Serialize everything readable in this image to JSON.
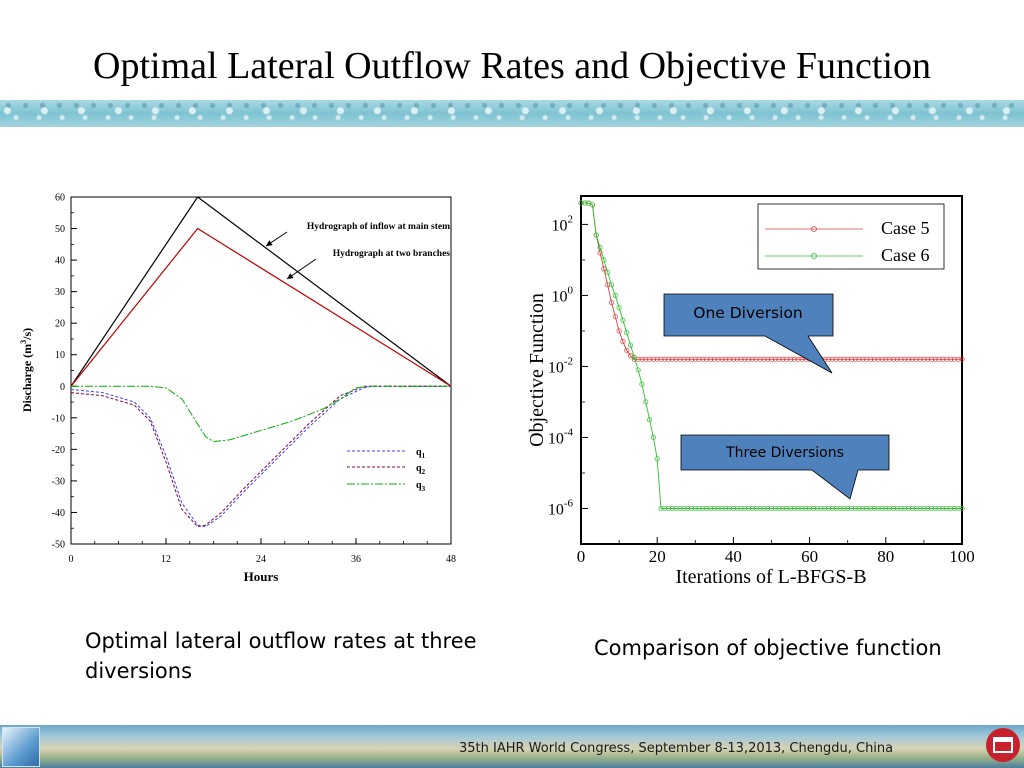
{
  "slide": {
    "title": "Optimal Lateral Outflow Rates and Objective Function",
    "caption_left": "Optimal lateral outflow rates at three diversions",
    "caption_right": "Comparison of objective function",
    "footer": "35th IAHR World Congress, September 8-13,2013, Chengdu, China"
  },
  "colors": {
    "inflow": "#000000",
    "branches": "#c00000",
    "q1": "#4040ff",
    "q2": "#800040",
    "q3": "#00b000",
    "case5": "#e04040",
    "case6": "#30c030",
    "callout_fill": "#4f81bd"
  },
  "chart_data": [
    {
      "type": "line",
      "xlabel": "Hours",
      "ylabel": "Discharge (m³/s)",
      "ylabel_parts": [
        "Discharge (m",
        "3",
        "/s)"
      ],
      "xlim": [
        0,
        48
      ],
      "ylim": [
        -50,
        60
      ],
      "xticks": [
        0,
        12,
        24,
        36,
        48
      ],
      "yticks": [
        -50,
        -40,
        -30,
        -20,
        -10,
        0,
        10,
        20,
        30,
        40,
        50,
        60
      ],
      "series": [
        {
          "name": "Hydrograph of inflow at main stem",
          "x": [
            0,
            16,
            48
          ],
          "y": [
            0,
            60,
            0
          ]
        },
        {
          "name": "Hydrograph at two branches",
          "x": [
            0,
            16,
            48
          ],
          "y": [
            0,
            50,
            0
          ]
        },
        {
          "name": "q1",
          "x": [
            0,
            4,
            8,
            10,
            12,
            14,
            16,
            17,
            19,
            22,
            26,
            30,
            34,
            37,
            38,
            48
          ],
          "y": [
            -1,
            -2,
            -5,
            -10,
            -22,
            -37,
            -44,
            -44.5,
            -41,
            -33,
            -23,
            -13,
            -4,
            -0.5,
            0,
            0
          ]
        },
        {
          "name": "q2",
          "x": [
            0,
            4,
            8,
            10,
            12,
            14,
            16,
            17,
            19,
            22,
            26,
            30,
            34,
            37,
            38,
            48
          ],
          "y": [
            -2,
            -3,
            -6,
            -11,
            -24,
            -39,
            -44.5,
            -44,
            -40,
            -32,
            -22,
            -12,
            -3,
            0,
            0,
            0
          ]
        },
        {
          "name": "q3",
          "x": [
            0,
            6,
            10,
            12,
            14,
            16,
            17,
            18,
            20,
            24,
            28,
            32,
            34,
            36,
            38,
            48
          ],
          "y": [
            0,
            0,
            0,
            -0.5,
            -4,
            -12,
            -16,
            -17.5,
            -17,
            -14,
            -11,
            -7,
            -4,
            -0.5,
            0,
            0
          ]
        }
      ],
      "legend": {
        "position": "bottom-right",
        "entries": [
          {
            "main": "q",
            "sub": "1"
          },
          {
            "main": "q",
            "sub": "2"
          },
          {
            "main": "q",
            "sub": "3"
          }
        ]
      }
    },
    {
      "type": "line",
      "xlabel": "Iterations of L-BFGS-B",
      "ylabel": "Objective Function",
      "xlim": [
        0,
        100
      ],
      "ylim_log10": [
        -7,
        2.8
      ],
      "yscale": "log",
      "xticks": [
        0,
        20,
        40,
        60,
        80,
        100
      ],
      "ytick_exponents": [
        "2",
        "0",
        "-2",
        "-4",
        "-6"
      ],
      "series": [
        {
          "name": "Case 5",
          "marker": "circle",
          "x": [
            0,
            1,
            2,
            3,
            4,
            5,
            6,
            7,
            8,
            9,
            10,
            11,
            12,
            13,
            14,
            15,
            100
          ],
          "y_log10": [
            2.6,
            2.6,
            2.6,
            2.55,
            1.7,
            1.2,
            0.75,
            0.3,
            -0.2,
            -0.6,
            -1,
            -1.3,
            -1.55,
            -1.7,
            -1.8,
            -1.8,
            -1.8
          ]
        },
        {
          "name": "Case 6",
          "marker": "circle",
          "x": [
            0,
            1,
            2,
            3,
            4,
            5,
            6,
            7,
            8,
            9,
            10,
            11,
            12,
            13,
            14,
            15,
            16,
            17,
            18,
            19,
            20,
            21,
            100
          ],
          "y_log10": [
            2.6,
            2.6,
            2.6,
            2.55,
            1.7,
            1.35,
            1.0,
            0.65,
            0.3,
            0.0,
            -0.35,
            -0.7,
            -1.05,
            -1.4,
            -1.75,
            -2.1,
            -2.5,
            -3.0,
            -3.5,
            -4.0,
            -4.6,
            -6.0,
            -6.0
          ]
        }
      ],
      "legend": {
        "position": "top-right"
      },
      "annotations": [
        {
          "text": "One Diversion"
        },
        {
          "text": "Three Diversions"
        }
      ]
    }
  ]
}
